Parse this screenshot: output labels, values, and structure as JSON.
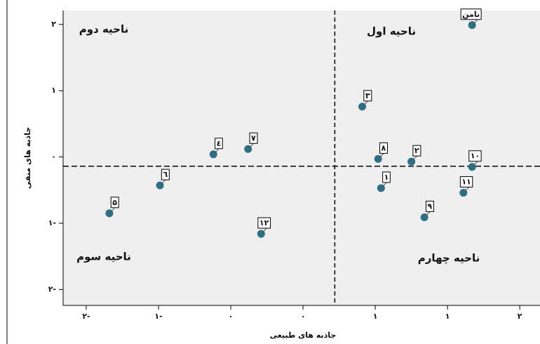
{
  "chart_data": {
    "type": "scatter",
    "x_label": "جاذبه های طبیعی",
    "y_label": "جاذبه های منفی",
    "quadrants": [
      "ناحیه اول",
      "ناحیه دوم",
      "ناحیه سوم",
      "ناحیه چهارم"
    ],
    "x": [
      1.17,
      0.41,
      0.52,
      0.75,
      1.17,
      0.54,
      1.11,
      0.84,
      -0.62,
      -0.38,
      -0.99,
      -1.34,
      -0.29
    ],
    "values": [
      1.99,
      0.76,
      -0.03,
      -0.07,
      -0.15,
      -0.47,
      -0.54,
      -0.91,
      0.04,
      0.12,
      -0.43,
      -0.85,
      -1.16
    ],
    "point_labels": [
      "نامن",
      "۳",
      "۸",
      "۲",
      "۱۰",
      "۱",
      "۱۱",
      "۹",
      "٤",
      "۷",
      "٦",
      "۵",
      "۱۲"
    ],
    "color": "#2f6f86",
    "xlim": [
      -1.66,
      1.64
    ],
    "ylim": [
      -2.24,
      2.21
    ],
    "xticks": [
      {
        "value": -1.5,
        "label": "۲-"
      },
      {
        "value": -1,
        "label": "۱-"
      },
      {
        "value": -0.5,
        "label": "۰"
      },
      {
        "value": 0,
        "label": "۰"
      },
      {
        "value": 0.5,
        "label": "۱"
      },
      {
        "value": 1,
        "label": "۱"
      },
      {
        "value": 1.5,
        "label": "۲"
      }
    ],
    "yticks": [
      {
        "value": 2,
        "label": "۲"
      },
      {
        "value": 1,
        "label": "۱"
      },
      {
        "value": 0,
        "label": "۰"
      },
      {
        "value": -1,
        "label": "۱-"
      },
      {
        "value": -2,
        "label": "۲-"
      }
    ],
    "vline": 0.22,
    "hline": -0.14
  }
}
